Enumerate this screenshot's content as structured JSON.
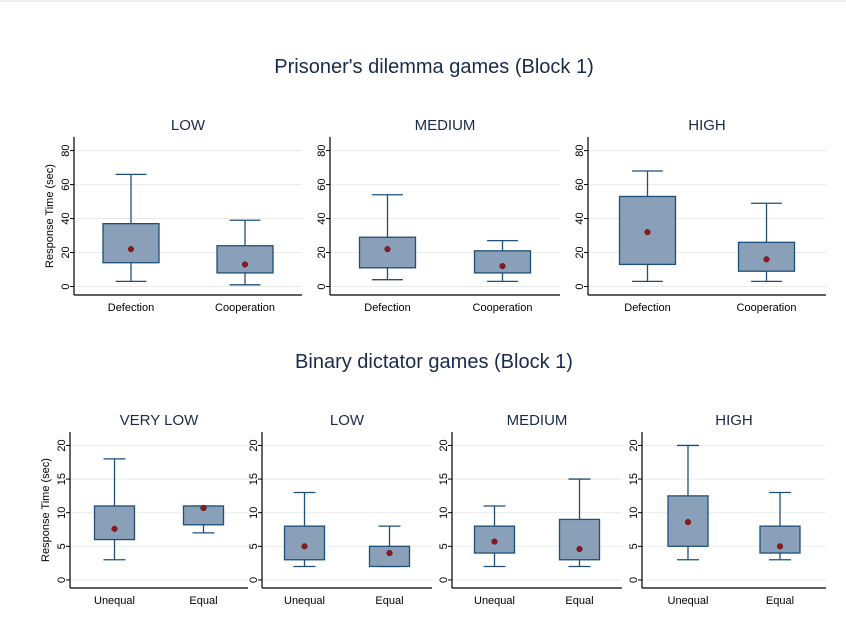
{
  "colors": {
    "box_fill": "#8aa0b8",
    "box_stroke": "#1f4e79",
    "whisker": "#1f4e79",
    "mean_marker": "#8b1a1a",
    "grid": "#eaeaea",
    "axis": "#000000",
    "title_text": "#1a2a4a"
  },
  "chart_data": [
    {
      "type": "box",
      "section_title": "Prisoner's dilemma games (Block 1)",
      "title": "LOW",
      "ylabel": "Response Time (sec)",
      "ylim": [
        -5,
        88
      ],
      "yticks": [
        0,
        20,
        40,
        60,
        80
      ],
      "grid": true,
      "categories": [
        "Defection",
        "Cooperation"
      ],
      "boxes": [
        {
          "category": "Defection",
          "whisker_low": 3,
          "q1": 14,
          "q3": 37,
          "whisker_high": 66,
          "mean": 22
        },
        {
          "category": "Cooperation",
          "whisker_low": 1,
          "q1": 8,
          "q3": 24,
          "whisker_high": 39,
          "mean": 13
        }
      ]
    },
    {
      "type": "box",
      "title": "MEDIUM",
      "ylim": [
        -5,
        88
      ],
      "yticks": [
        0,
        20,
        40,
        60,
        80
      ],
      "grid": true,
      "categories": [
        "Defection",
        "Cooperation"
      ],
      "boxes": [
        {
          "category": "Defection",
          "whisker_low": 4,
          "q1": 11,
          "q3": 29,
          "whisker_high": 54,
          "mean": 22
        },
        {
          "category": "Cooperation",
          "whisker_low": 3,
          "q1": 8,
          "q3": 21,
          "whisker_high": 27,
          "mean": 12
        }
      ]
    },
    {
      "type": "box",
      "title": "HIGH",
      "ylim": [
        -5,
        88
      ],
      "yticks": [
        0,
        20,
        40,
        60,
        80
      ],
      "grid": true,
      "categories": [
        "Defection",
        "Cooperation"
      ],
      "boxes": [
        {
          "category": "Defection",
          "whisker_low": 3,
          "q1": 13,
          "q3": 53,
          "whisker_high": 68,
          "mean": 32
        },
        {
          "category": "Cooperation",
          "whisker_low": 3,
          "q1": 9,
          "q3": 26,
          "whisker_high": 49,
          "mean": 16
        }
      ]
    },
    {
      "type": "box",
      "section_title": "Binary dictator games (Block 1)",
      "title": "VERY LOW",
      "ylabel": "Response Time (sec)",
      "ylim": [
        -1.2,
        22
      ],
      "yticks": [
        0,
        5,
        10,
        15,
        20
      ],
      "grid": true,
      "categories": [
        "Unequal",
        "Equal"
      ],
      "boxes": [
        {
          "category": "Unequal",
          "whisker_low": 3,
          "q1": 6,
          "q3": 11,
          "whisker_high": 18,
          "mean": 7.6
        },
        {
          "category": "Equal",
          "whisker_low": 7,
          "q1": 8.2,
          "q3": 11,
          "whisker_high": 11,
          "mean": 10.7
        }
      ]
    },
    {
      "type": "box",
      "title": "LOW",
      "ylim": [
        -1.2,
        22
      ],
      "yticks": [
        0,
        5,
        10,
        15,
        20
      ],
      "grid": true,
      "categories": [
        "Unequal",
        "Equal"
      ],
      "boxes": [
        {
          "category": "Unequal",
          "whisker_low": 2,
          "q1": 3,
          "q3": 8,
          "whisker_high": 13,
          "mean": 5
        },
        {
          "category": "Equal",
          "whisker_low": 2,
          "q1": 2,
          "q3": 5,
          "whisker_high": 8,
          "mean": 4
        }
      ]
    },
    {
      "type": "box",
      "title": "MEDIUM",
      "ylim": [
        -1.2,
        22
      ],
      "yticks": [
        0,
        5,
        10,
        15,
        20
      ],
      "grid": true,
      "categories": [
        "Unequal",
        "Equal"
      ],
      "boxes": [
        {
          "category": "Unequal",
          "whisker_low": 2,
          "q1": 4,
          "q3": 8,
          "whisker_high": 11,
          "mean": 5.7
        },
        {
          "category": "Equal",
          "whisker_low": 2,
          "q1": 3,
          "q3": 9,
          "whisker_high": 15,
          "mean": 4.6
        }
      ]
    },
    {
      "type": "box",
      "title": "HIGH",
      "ylim": [
        -1.2,
        22
      ],
      "yticks": [
        0,
        5,
        10,
        15,
        20
      ],
      "grid": true,
      "categories": [
        "Unequal",
        "Equal"
      ],
      "boxes": [
        {
          "category": "Unequal",
          "whisker_low": 3,
          "q1": 5,
          "q3": 12.5,
          "whisker_high": 20,
          "mean": 8.6
        },
        {
          "category": "Equal",
          "whisker_low": 3,
          "q1": 4,
          "q3": 8,
          "whisker_high": 13,
          "mean": 5
        }
      ]
    }
  ]
}
